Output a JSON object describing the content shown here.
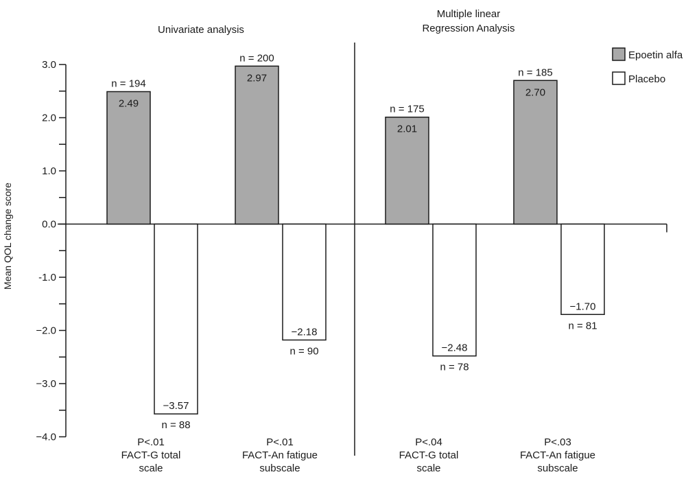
{
  "chart_data": {
    "type": "bar",
    "ylabel": "Mean QOL change score",
    "ylim": [
      -4.0,
      3.0
    ],
    "yticks": [
      "3.0",
      "2.0",
      "1.0",
      "0.0",
      "-1.0",
      "−2.0",
      "−3.0",
      "−4.0"
    ],
    "ytick_values": [
      3,
      2,
      1,
      0,
      -1,
      -2,
      -3,
      -4
    ],
    "panels": [
      {
        "title_lines": [
          "Univariate analysis"
        ]
      },
      {
        "title_lines": [
          "Multiple linear",
          "Regression Analysis"
        ]
      }
    ],
    "groups": [
      {
        "panel": 0,
        "label_lines": [
          "P<.01",
          "FACT-G total",
          "scale"
        ],
        "epoetin": {
          "value": 2.49,
          "label": "2.49",
          "n": "n = 194"
        },
        "placebo": {
          "value": -3.57,
          "label": "−3.57",
          "n": "n = 88"
        }
      },
      {
        "panel": 0,
        "label_lines": [
          "P<.01",
          "FACT-An fatigue",
          "subscale"
        ],
        "epoetin": {
          "value": 2.97,
          "label": "2.97",
          "n": "n = 200"
        },
        "placebo": {
          "value": -2.18,
          "label": "−2.18",
          "n": "n = 90"
        }
      },
      {
        "panel": 1,
        "label_lines": [
          "P<.04",
          "FACT-G total",
          "scale"
        ],
        "epoetin": {
          "value": 2.01,
          "label": "2.01",
          "n": "n = 175"
        },
        "placebo": {
          "value": -2.48,
          "label": "−2.48",
          "n": "n = 78"
        }
      },
      {
        "panel": 1,
        "label_lines": [
          "P<.03",
          "FACT-An fatigue",
          "subscale"
        ],
        "epoetin": {
          "value": 2.7,
          "label": "2.70",
          "n": "n = 185"
        },
        "placebo": {
          "value": -1.7,
          "label": "−1.70",
          "n": "n = 81"
        }
      }
    ],
    "legend": {
      "placement": "top-right",
      "items": [
        {
          "name": "Epoetin alfa",
          "color": "#a9a9a9"
        },
        {
          "name": "Placebo",
          "color": "#ffffff"
        }
      ]
    },
    "colors": {
      "epoetin": "#a9a9a9",
      "placebo": "#ffffff",
      "stroke": "#1a1a1a"
    }
  }
}
